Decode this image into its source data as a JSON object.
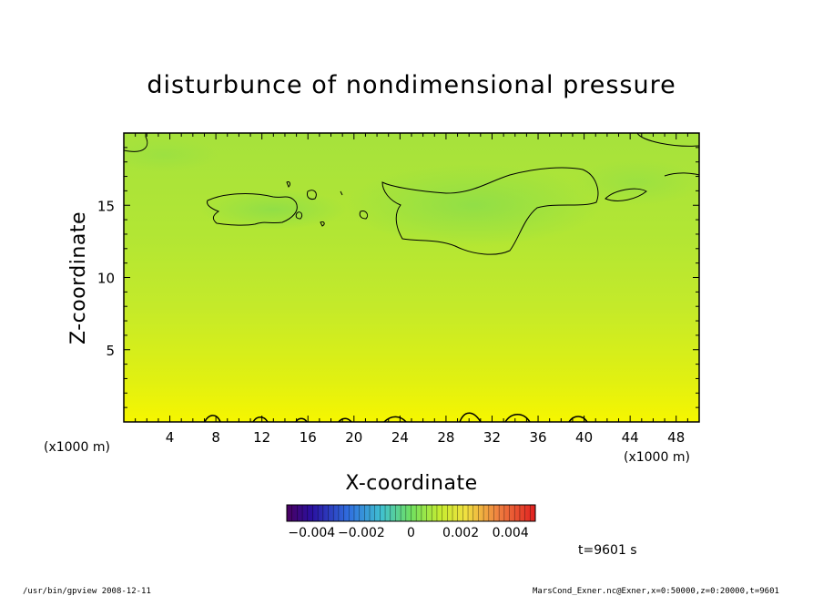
{
  "chart_data": {
    "type": "heatmap",
    "title": "disturbunce of nondimensional pressure",
    "xlabel": "X-coordinate",
    "ylabel": "Z-coordinate",
    "x_unit": "(x1000 m)",
    "y_unit": "(x1000 m)",
    "x_ticks": [
      "4",
      "8",
      "12",
      "16",
      "20",
      "24",
      "28",
      "32",
      "36",
      "40",
      "44",
      "48"
    ],
    "y_ticks": [
      "5",
      "10",
      "15"
    ],
    "xlim": [
      0,
      50
    ],
    "ylim": [
      0,
      20
    ],
    "colorbar": {
      "colormap": "rainbow",
      "range": [
        -0.005,
        0.005
      ],
      "tick_labels": [
        "−0.004",
        "−0.002",
        "0",
        "0.002",
        "0.004"
      ],
      "tick_values": [
        -0.004,
        -0.002,
        0,
        0.002,
        0.004
      ]
    },
    "field_description_colors": {
      "top": "#99e040",
      "middle": "#c8ec28",
      "bottom": "#f4f400"
    },
    "contour_level": 0
  },
  "time_label": "t=9601 s",
  "footer_left": "/usr/bin/gpview   2008-12-11",
  "footer_right": "MarsCond_Exner.nc@Exner,x=0:50000,z=0:20000,t=9601"
}
